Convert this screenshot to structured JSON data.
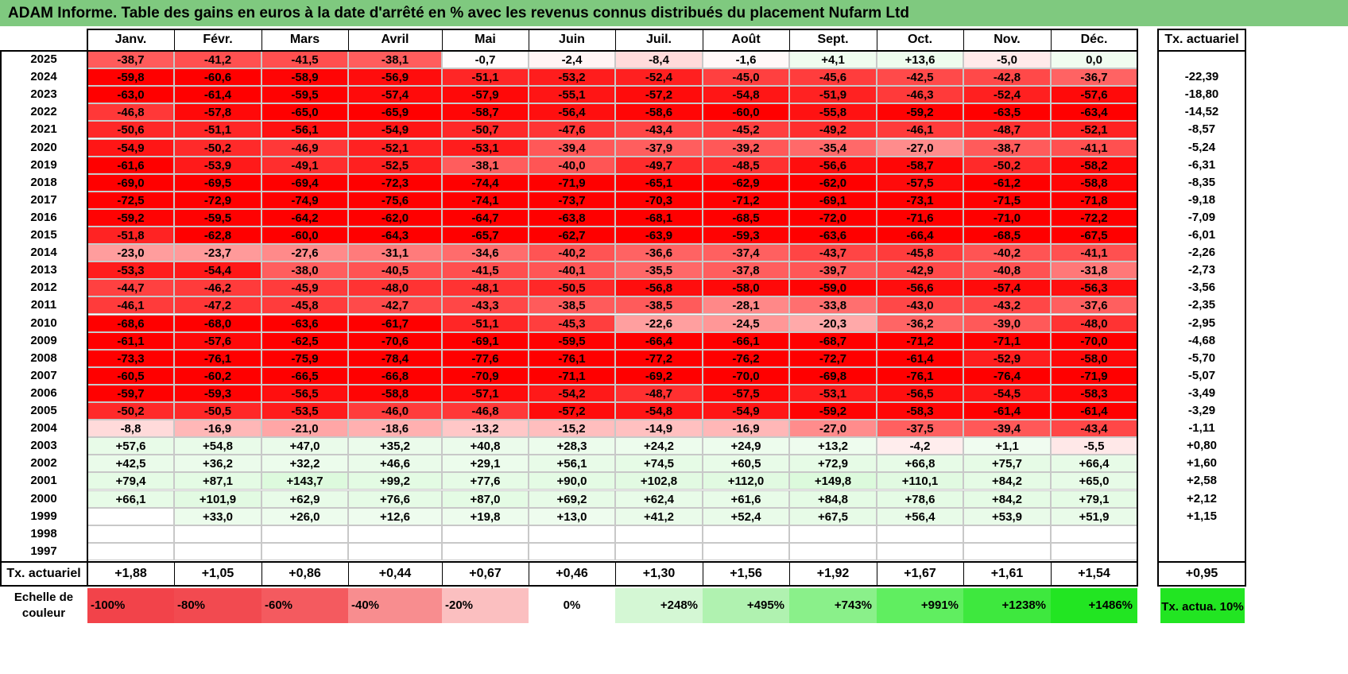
{
  "title": "ADAM Informe. Table des gains en euros à la date d'arrêté en % avec les revenus connus distribués du placement Nufarm Ltd",
  "months": [
    "Janv.",
    "Févr.",
    "Mars",
    "Avril",
    "Mai",
    "Juin",
    "Juil.",
    "Août",
    "Sept.",
    "Oct.",
    "Nov.",
    "Déc."
  ],
  "annual_header": "Tx. actuariel",
  "rows": [
    {
      "year": "2025",
      "values": [
        "-38,7",
        "-41,2",
        "-41,5",
        "-38,1",
        "-0,7",
        "-2,4",
        "-8,4",
        "-1,6",
        "+4,1",
        "+13,6",
        "-5,0",
        "0,0"
      ],
      "annual": ""
    },
    {
      "year": "2024",
      "values": [
        "-59,8",
        "-60,6",
        "-58,9",
        "-56,9",
        "-51,1",
        "-53,2",
        "-52,4",
        "-45,0",
        "-45,6",
        "-42,5",
        "-42,8",
        "-36,7"
      ],
      "annual": "-22,39"
    },
    {
      "year": "2023",
      "values": [
        "-63,0",
        "-61,4",
        "-59,5",
        "-57,4",
        "-57,9",
        "-55,1",
        "-57,2",
        "-54,8",
        "-51,9",
        "-46,3",
        "-52,4",
        "-57,6"
      ],
      "annual": "-18,80"
    },
    {
      "year": "2022",
      "values": [
        "-46,8",
        "-57,8",
        "-65,0",
        "-65,9",
        "-58,7",
        "-56,4",
        "-58,6",
        "-60,0",
        "-55,8",
        "-59,2",
        "-63,5",
        "-63,4"
      ],
      "annual": "-14,52"
    },
    {
      "year": "2021",
      "values": [
        "-50,6",
        "-51,1",
        "-56,1",
        "-54,9",
        "-50,7",
        "-47,6",
        "-43,4",
        "-45,2",
        "-49,2",
        "-46,1",
        "-48,7",
        "-52,1"
      ],
      "annual": "-8,57"
    },
    {
      "year": "2020",
      "values": [
        "-54,9",
        "-50,2",
        "-46,9",
        "-52,1",
        "-53,1",
        "-39,4",
        "-37,9",
        "-39,2",
        "-35,4",
        "-27,0",
        "-38,7",
        "-41,1"
      ],
      "annual": "-5,24"
    },
    {
      "year": "2019",
      "values": [
        "-61,6",
        "-53,9",
        "-49,1",
        "-52,5",
        "-38,1",
        "-40,0",
        "-49,7",
        "-48,5",
        "-56,6",
        "-58,7",
        "-50,2",
        "-58,2"
      ],
      "annual": "-6,31"
    },
    {
      "year": "2018",
      "values": [
        "-69,0",
        "-69,5",
        "-69,4",
        "-72,3",
        "-74,4",
        "-71,9",
        "-65,1",
        "-62,9",
        "-62,0",
        "-57,5",
        "-61,2",
        "-58,8"
      ],
      "annual": "-8,35"
    },
    {
      "year": "2017",
      "values": [
        "-72,5",
        "-72,9",
        "-74,9",
        "-75,6",
        "-74,1",
        "-73,7",
        "-70,3",
        "-71,2",
        "-69,1",
        "-73,1",
        "-71,5",
        "-71,8"
      ],
      "annual": "-9,18"
    },
    {
      "year": "2016",
      "values": [
        "-59,2",
        "-59,5",
        "-64,2",
        "-62,0",
        "-64,7",
        "-63,8",
        "-68,1",
        "-68,5",
        "-72,0",
        "-71,6",
        "-71,0",
        "-72,2"
      ],
      "annual": "-7,09"
    },
    {
      "year": "2015",
      "values": [
        "-51,8",
        "-62,8",
        "-60,0",
        "-64,3",
        "-65,7",
        "-62,7",
        "-63,9",
        "-59,3",
        "-63,6",
        "-66,4",
        "-68,5",
        "-67,5"
      ],
      "annual": "-6,01"
    },
    {
      "year": "2014",
      "values": [
        "-23,0",
        "-23,7",
        "-27,6",
        "-31,1",
        "-34,6",
        "-40,2",
        "-36,6",
        "-37,4",
        "-43,7",
        "-45,8",
        "-40,2",
        "-41,1"
      ],
      "annual": "-2,26"
    },
    {
      "year": "2013",
      "values": [
        "-53,3",
        "-54,4",
        "-38,0",
        "-40,5",
        "-41,5",
        "-40,1",
        "-35,5",
        "-37,8",
        "-39,7",
        "-42,9",
        "-40,8",
        "-31,8"
      ],
      "annual": "-2,73"
    },
    {
      "year": "2012",
      "values": [
        "-44,7",
        "-46,2",
        "-45,9",
        "-48,0",
        "-48,1",
        "-50,5",
        "-56,8",
        "-58,0",
        "-59,0",
        "-56,6",
        "-57,4",
        "-56,3"
      ],
      "annual": "-3,56"
    },
    {
      "year": "2011",
      "values": [
        "-46,1",
        "-47,2",
        "-45,8",
        "-42,7",
        "-43,3",
        "-38,5",
        "-38,5",
        "-28,1",
        "-33,8",
        "-43,0",
        "-43,2",
        "-37,6"
      ],
      "annual": "-2,35"
    },
    {
      "year": "2010",
      "values": [
        "-68,6",
        "-68,0",
        "-63,6",
        "-61,7",
        "-51,1",
        "-45,3",
        "-22,6",
        "-24,5",
        "-20,3",
        "-36,2",
        "-39,0",
        "-48,0"
      ],
      "annual": "-2,95"
    },
    {
      "year": "2009",
      "values": [
        "-61,1",
        "-57,6",
        "-62,5",
        "-70,6",
        "-69,1",
        "-59,5",
        "-66,4",
        "-66,1",
        "-68,7",
        "-71,2",
        "-71,1",
        "-70,0"
      ],
      "annual": "-4,68"
    },
    {
      "year": "2008",
      "values": [
        "-73,3",
        "-76,1",
        "-75,9",
        "-78,4",
        "-77,6",
        "-76,1",
        "-77,2",
        "-76,2",
        "-72,7",
        "-61,4",
        "-52,9",
        "-58,0"
      ],
      "annual": "-5,70"
    },
    {
      "year": "2007",
      "values": [
        "-60,5",
        "-60,2",
        "-66,5",
        "-66,8",
        "-70,9",
        "-71,1",
        "-69,2",
        "-70,0",
        "-69,8",
        "-76,1",
        "-76,4",
        "-71,9"
      ],
      "annual": "-5,07"
    },
    {
      "year": "2006",
      "values": [
        "-59,7",
        "-59,3",
        "-56,5",
        "-58,8",
        "-57,1",
        "-54,2",
        "-48,7",
        "-57,5",
        "-53,1",
        "-56,5",
        "-54,5",
        "-58,3"
      ],
      "annual": "-3,49"
    },
    {
      "year": "2005",
      "values": [
        "-50,2",
        "-50,5",
        "-53,5",
        "-46,0",
        "-46,8",
        "-57,2",
        "-54,8",
        "-54,9",
        "-59,2",
        "-58,3",
        "-61,4",
        "-61,4"
      ],
      "annual": "-3,29"
    },
    {
      "year": "2004",
      "values": [
        "-8,8",
        "-16,9",
        "-21,0",
        "-18,6",
        "-13,2",
        "-15,2",
        "-14,9",
        "-16,9",
        "-27,0",
        "-37,5",
        "-39,4",
        "-43,4"
      ],
      "annual": "-1,11"
    },
    {
      "year": "2003",
      "values": [
        "+57,6",
        "+54,8",
        "+47,0",
        "+35,2",
        "+40,8",
        "+28,3",
        "+24,2",
        "+24,9",
        "+13,2",
        "-4,2",
        "+1,1",
        "-5,5"
      ],
      "annual": "+0,80"
    },
    {
      "year": "2002",
      "values": [
        "+42,5",
        "+36,2",
        "+32,2",
        "+46,6",
        "+29,1",
        "+56,1",
        "+74,5",
        "+60,5",
        "+72,9",
        "+66,8",
        "+75,7",
        "+66,4"
      ],
      "annual": "+1,60"
    },
    {
      "year": "2001",
      "values": [
        "+79,4",
        "+87,1",
        "+143,7",
        "+99,2",
        "+77,6",
        "+90,0",
        "+102,8",
        "+112,0",
        "+149,8",
        "+110,1",
        "+84,2",
        "+65,0"
      ],
      "annual": "+2,58"
    },
    {
      "year": "2000",
      "values": [
        "+66,1",
        "+101,9",
        "+62,9",
        "+76,6",
        "+87,0",
        "+69,2",
        "+62,4",
        "+61,6",
        "+84,8",
        "+78,6",
        "+84,2",
        "+79,1"
      ],
      "annual": "+2,12"
    },
    {
      "year": "1999",
      "values": [
        "",
        "+33,0",
        "+26,0",
        "+12,6",
        "+19,8",
        "+13,0",
        "+41,2",
        "+52,4",
        "+67,5",
        "+56,4",
        "+53,9",
        "+51,9"
      ],
      "annual": "+1,15"
    },
    {
      "year": "1998",
      "values": [
        "",
        "",
        "",
        "",
        "",
        "",
        "",
        "",
        "",
        "",
        "",
        ""
      ],
      "annual": ""
    },
    {
      "year": "1997",
      "values": [
        "",
        "",
        "",
        "",
        "",
        "",
        "",
        "",
        "",
        "",
        "",
        ""
      ],
      "annual": ""
    }
  ],
  "footer": {
    "label": "Tx. actuariel",
    "values": [
      "+1,88",
      "+1,05",
      "+0,86",
      "+0,44",
      "+0,67",
      "+0,46",
      "+1,30",
      "+1,56",
      "+1,92",
      "+1,67",
      "+1,61",
      "+1,54"
    ],
    "annual": "+0,95"
  },
  "scale": {
    "label": "Echelle de couleur",
    "items": [
      {
        "text": "-100%",
        "color": "#f2434a"
      },
      {
        "text": "-80%",
        "color": "#f24a50"
      },
      {
        "text": "-60%",
        "color": "#f45a5f"
      },
      {
        "text": "-40%",
        "color": "#f88d8f"
      },
      {
        "text": "-20%",
        "color": "#fbbfc0"
      },
      {
        "text": "0%",
        "color": "#ffffff"
      },
      {
        "text": "+248%",
        "color": "#d4f7d4"
      },
      {
        "text": "+495%",
        "color": "#b0f2b0"
      },
      {
        "text": "+743%",
        "color": "#8af08a"
      },
      {
        "text": "+991%",
        "color": "#60ee60"
      },
      {
        "text": "+1238%",
        "color": "#3ee83e"
      },
      {
        "text": "+1486%",
        "color": "#22e522"
      }
    ],
    "annual_label": "Tx. actua. 10%",
    "annual_color": "#22e522"
  }
}
